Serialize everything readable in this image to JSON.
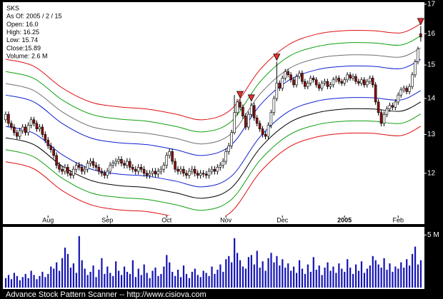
{
  "chart_data": [
    {
      "type": "candlestick",
      "info": [
        "SKS",
        "As Of: 2005 / 2 / 15",
        "Open: 16.0",
        "High: 16.25",
        "Low: 15.74",
        "Close:15.89",
        "Volume: 2.6 M"
      ],
      "log": true,
      "xlim": [
        -1,
        148.3
      ],
      "xticks": [
        {
          "value": 15,
          "label": "Aug"
        },
        {
          "value": 36,
          "label": "Sep"
        },
        {
          "value": 57,
          "label": "Oct"
        },
        {
          "value": 78,
          "label": "Nov"
        },
        {
          "value": 98,
          "label": "Dec"
        },
        {
          "value": 120,
          "label": "2005",
          "bold": true
        },
        {
          "value": 139,
          "label": "Feb"
        }
      ],
      "ylim": [
        11,
        17.05
      ],
      "yticks": [
        12,
        13,
        14,
        15,
        16,
        17
      ],
      "up_color": "#ffffff",
      "down_color": "#8b1010",
      "open": [
        13.4,
        13.55,
        13.3,
        13.2,
        13.05,
        12.95,
        13.1,
        13.2,
        13.05,
        13.25,
        13.4,
        13.3,
        13.15,
        13.2,
        13.0,
        12.85,
        12.7,
        12.6,
        12.45,
        12.2,
        12.1,
        12.05,
        12.15,
        12.0,
        11.95,
        12.1,
        12.2,
        12.15,
        12.05,
        12.1,
        12.25,
        12.3,
        12.2,
        12.15,
        12.05,
        12.0,
        11.95,
        12.05,
        12.2,
        12.25,
        12.3,
        12.35,
        12.25,
        12.2,
        12.3,
        12.15,
        12.1,
        12.05,
        12.15,
        12.1,
        12.0,
        11.95,
        12.0,
        12.05,
        11.98,
        12.05,
        12.1,
        12.2,
        12.45,
        12.55,
        12.3,
        12.1,
        12.05,
        12.1,
        12.0,
        11.95,
        12.05,
        12.1,
        12.0,
        11.95,
        12.0,
        11.98,
        11.95,
        12.05,
        12.1,
        12.05,
        12.15,
        12.2,
        12.3,
        12.55,
        12.7,
        13.05,
        13.6,
        13.9,
        13.75,
        13.5,
        13.2,
        13.55,
        13.8,
        13.45,
        13.3,
        13.15,
        13.0,
        12.95,
        13.25,
        13.6,
        14.0,
        14.45,
        14.3,
        14.6,
        14.8,
        14.7,
        14.55,
        14.4,
        14.65,
        14.75,
        14.5,
        14.35,
        14.45,
        14.6,
        14.55,
        14.4,
        14.3,
        14.45,
        14.5,
        14.35,
        14.4,
        14.55,
        14.6,
        14.5,
        14.45,
        14.55,
        14.7,
        14.6,
        14.65,
        14.5,
        14.45,
        14.55,
        14.4,
        14.5,
        14.6,
        14.4,
        13.9,
        13.6,
        13.3,
        13.55,
        13.7,
        13.8,
        13.75,
        13.9,
        14.1,
        14.25,
        14.3,
        14.2,
        14.35,
        14.7,
        15.1,
        16.0
      ],
      "high": [
        13.63,
        13.63,
        13.38,
        13.28,
        13.13,
        13.18,
        13.28,
        13.28,
        13.33,
        13.48,
        13.48,
        13.38,
        13.28,
        13.28,
        13.08,
        12.93,
        12.78,
        12.68,
        12.53,
        12.28,
        12.18,
        12.23,
        12.23,
        12.08,
        12.18,
        12.28,
        12.28,
        12.23,
        12.18,
        12.33,
        12.38,
        12.38,
        12.28,
        12.23,
        12.13,
        12.08,
        12.13,
        12.28,
        12.33,
        12.38,
        12.43,
        12.43,
        12.33,
        12.38,
        12.38,
        12.23,
        12.18,
        12.23,
        12.23,
        12.18,
        12.08,
        12.08,
        12.13,
        12.13,
        12.13,
        12.18,
        12.28,
        12.53,
        12.63,
        12.63,
        12.38,
        12.18,
        12.18,
        12.18,
        12.08,
        12.13,
        12.18,
        12.18,
        12.08,
        12.08,
        12.08,
        12.06,
        12.13,
        12.18,
        12.18,
        12.23,
        12.28,
        12.38,
        12.63,
        12.78,
        13.13,
        14.1,
        13.98,
        13.98,
        13.83,
        13.58,
        13.63,
        13.88,
        13.88,
        13.53,
        13.38,
        13.23,
        13.08,
        13.33,
        13.68,
        14.08,
        15.1,
        14.53,
        14.68,
        14.88,
        14.88,
        14.78,
        14.63,
        14.73,
        14.83,
        14.83,
        14.58,
        14.53,
        14.68,
        14.68,
        14.63,
        14.48,
        14.53,
        14.58,
        14.58,
        14.48,
        14.63,
        14.68,
        14.68,
        14.58,
        14.63,
        14.78,
        14.78,
        14.73,
        14.73,
        14.58,
        14.63,
        14.63,
        14.58,
        14.68,
        14.68,
        14.48,
        13.98,
        13.68,
        13.63,
        13.78,
        13.88,
        13.88,
        13.98,
        14.18,
        14.33,
        14.38,
        14.38,
        14.43,
        14.78,
        15.18,
        15.58,
        16.25
      ],
      "low": [
        13.32,
        13.22,
        13.12,
        12.97,
        12.87,
        12.87,
        13.02,
        12.97,
        12.97,
        13.17,
        13.22,
        13.07,
        13.07,
        12.92,
        12.77,
        12.62,
        12.52,
        12.37,
        12.12,
        12.02,
        11.97,
        11.97,
        11.92,
        11.87,
        11.87,
        12.02,
        12.07,
        11.97,
        11.97,
        12.02,
        12.17,
        12.12,
        12.07,
        11.97,
        11.92,
        11.87,
        11.87,
        11.97,
        12.12,
        12.17,
        12.22,
        12.17,
        12.12,
        12.12,
        12.07,
        12.02,
        11.97,
        11.97,
        12.02,
        11.92,
        11.87,
        11.87,
        11.92,
        11.9,
        11.9,
        11.97,
        12.02,
        12.12,
        12.37,
        12.22,
        12.02,
        11.97,
        11.97,
        11.92,
        11.87,
        11.87,
        11.97,
        11.92,
        11.87,
        11.87,
        11.9,
        11.87,
        11.87,
        11.97,
        11.97,
        11.97,
        12.07,
        12.12,
        12.22,
        12.47,
        12.62,
        13.0,
        13.52,
        13.67,
        13.42,
        13.12,
        13.12,
        13.47,
        13.37,
        13.22,
        13.07,
        12.92,
        12.87,
        12.87,
        13.17,
        13.52,
        13.92,
        14.22,
        14.22,
        14.52,
        14.62,
        14.47,
        14.32,
        14.32,
        14.57,
        14.42,
        14.27,
        14.27,
        14.37,
        14.47,
        14.32,
        14.22,
        14.22,
        14.37,
        14.27,
        14.27,
        14.32,
        14.47,
        14.42,
        14.37,
        14.37,
        14.47,
        14.52,
        14.52,
        14.42,
        14.37,
        14.37,
        14.32,
        14.32,
        14.42,
        14.32,
        13.82,
        13.52,
        13.22,
        13.22,
        13.47,
        13.62,
        13.67,
        13.67,
        13.82,
        14.02,
        14.17,
        14.12,
        14.12,
        14.27,
        14.62,
        15.02,
        15.74
      ],
      "close": [
        13.55,
        13.3,
        13.2,
        13.05,
        12.95,
        13.1,
        13.2,
        13.05,
        13.25,
        13.4,
        13.3,
        13.15,
        13.2,
        13.0,
        12.85,
        12.7,
        12.6,
        12.45,
        12.2,
        12.1,
        12.05,
        12.15,
        12.0,
        11.95,
        12.1,
        12.2,
        12.15,
        12.05,
        12.1,
        12.25,
        12.3,
        12.2,
        12.15,
        12.05,
        12.0,
        11.95,
        12.05,
        12.2,
        12.25,
        12.3,
        12.35,
        12.25,
        12.2,
        12.3,
        12.15,
        12.1,
        12.05,
        12.15,
        12.1,
        12.0,
        11.95,
        12.0,
        12.05,
        11.98,
        12.05,
        12.1,
        12.2,
        12.45,
        12.55,
        12.3,
        12.1,
        12.05,
        12.1,
        12.0,
        11.95,
        12.05,
        12.1,
        12.0,
        11.95,
        12.0,
        11.98,
        11.95,
        12.05,
        12.1,
        12.05,
        12.15,
        12.2,
        12.3,
        12.55,
        12.7,
        13.05,
        13.6,
        13.9,
        13.75,
        13.5,
        13.2,
        13.55,
        13.8,
        13.45,
        13.3,
        13.15,
        13.0,
        12.95,
        13.25,
        13.6,
        14.0,
        14.45,
        14.3,
        14.6,
        14.8,
        14.7,
        14.55,
        14.4,
        14.65,
        14.75,
        14.5,
        14.35,
        14.45,
        14.6,
        14.55,
        14.4,
        14.3,
        14.45,
        14.5,
        14.35,
        14.4,
        14.55,
        14.6,
        14.5,
        14.45,
        14.55,
        14.7,
        14.6,
        14.65,
        14.5,
        14.45,
        14.55,
        14.4,
        14.5,
        14.6,
        14.4,
        13.9,
        13.6,
        13.3,
        13.55,
        13.7,
        13.8,
        13.75,
        13.9,
        14.1,
        14.25,
        14.3,
        14.2,
        14.35,
        14.7,
        15.1,
        15.5,
        15.89
      ],
      "bands": {
        "x": [
          0,
          10,
          20,
          30,
          40,
          50,
          60,
          70,
          80,
          90,
          100,
          110,
          120,
          130,
          140,
          147
        ],
        "series": [
          {
            "color": "#e01010",
            "values": [
              15.18,
              14.96,
              14.31,
              13.9,
              13.76,
              13.7,
              13.56,
              13.4,
              13.7,
              14.85,
              15.63,
              15.98,
              16.1,
              16.1,
              16.03,
              16.33
            ]
          },
          {
            "color": "#10a010",
            "values": [
              14.8,
              14.59,
              13.96,
              13.56,
              13.42,
              13.36,
              13.22,
              13.07,
              13.36,
              14.48,
              15.25,
              15.58,
              15.7,
              15.7,
              15.63,
              15.93
            ]
          },
          {
            "color": "#707070",
            "values": [
              14.44,
              14.23,
              13.62,
              13.22,
              13.09,
              13.03,
              12.9,
              12.75,
              13.03,
              14.12,
              14.87,
              15.2,
              15.31,
              15.31,
              15.25,
              15.54
            ]
          },
          {
            "color": "#1020d0",
            "values": [
              14.1,
              13.9,
              13.3,
              12.91,
              12.78,
              12.73,
              12.6,
              12.45,
              12.73,
              13.8,
              14.52,
              14.85,
              14.96,
              14.96,
              14.89,
              15.18
            ]
          },
          {
            "color": "#1020d0",
            "values": [
              13.22,
              13.03,
              12.47,
              12.11,
              11.98,
              11.93,
              11.81,
              11.67,
              11.93,
              12.93,
              13.62,
              13.92,
              14.02,
              14.02,
              13.96,
              14.23
            ]
          },
          {
            "color": "#000000",
            "values": [
              12.91,
              12.73,
              12.18,
              11.83,
              11.7,
              11.65,
              11.53,
              11.4,
              11.65,
              12.63,
              13.3,
              13.59,
              13.7,
              13.7,
              13.64,
              13.9
            ]
          },
          {
            "color": "#10a010",
            "values": [
              12.6,
              12.41,
              11.88,
              11.53,
              11.42,
              11.37,
              11.25,
              11.12,
              11.37,
              12.32,
              12.97,
              13.26,
              13.36,
              13.36,
              13.3,
              13.56
            ]
          },
          {
            "color": "#e01010",
            "values": [
              12.29,
              12.11,
              11.58,
              11.25,
              11.13,
              11.09,
              10.97,
              10.84,
              11.09,
              12.02,
              12.65,
              12.93,
              13.03,
              13.03,
              12.97,
              13.22
            ]
          }
        ]
      },
      "markers": {
        "color": "#e03030",
        "indices": [
          83,
          87,
          96,
          147
        ]
      }
    },
    {
      "type": "bar",
      "xlim": [
        -1,
        148.3
      ],
      "ylim": [
        0,
        5.5
      ],
      "y2ticks": [
        {
          "value": 5,
          "label": "5 M"
        }
      ],
      "color": "#1414b4",
      "values": [
        0.9,
        1.2,
        0.8,
        1.4,
        1.1,
        0.7,
        1.0,
        1.3,
        0.9,
        1.6,
        1.2,
        0.8,
        1.1,
        1.5,
        1.0,
        1.3,
        2.0,
        1.8,
        2.4,
        1.6,
        2.8,
        3.8,
        3.2,
        1.9,
        2.3,
        1.4,
        4.9,
        2.6,
        1.8,
        1.2,
        1.5,
        2.1,
        1.0,
        1.7,
        2.8,
        1.3,
        2.0,
        1.4,
        1.1,
        2.5,
        1.6,
        1.2,
        2.0,
        1.5,
        1.3,
        2.6,
        1.0,
        1.8,
        1.2,
        2.2,
        1.4,
        0.9,
        1.6,
        1.9,
        1.1,
        1.3,
        2.0,
        3.1,
        2.4,
        1.5,
        1.1,
        1.7,
        1.0,
        2.1,
        1.3,
        0.9,
        1.5,
        1.8,
        1.2,
        1.0,
        1.6,
        1.4,
        1.1,
        2.0,
        1.3,
        1.7,
        2.2,
        1.5,
        2.7,
        3.0,
        2.4,
        4.7,
        3.3,
        2.6,
        2.0,
        1.8,
        2.9,
        3.1,
        2.2,
        3.5,
        1.9,
        2.5,
        1.6,
        2.8,
        3.3,
        2.4,
        3.0,
        2.1,
        2.7,
        1.9,
        2.3,
        1.6,
        2.0,
        1.4,
        2.6,
        1.8,
        1.3,
        2.2,
        1.5,
        2.9,
        1.7,
        2.1,
        1.2,
        1.9,
        2.4,
        1.6,
        2.0,
        1.4,
        2.3,
        1.8,
        1.5,
        2.7,
        1.9,
        1.3,
        2.2,
        1.6,
        2.5,
        1.4,
        1.8,
        2.1,
        3.0,
        2.6,
        2.2,
        1.9,
        2.8,
        1.7,
        2.3,
        1.5,
        2.0,
        1.8,
        2.4,
        1.9,
        2.7,
        2.1,
        3.2,
        3.9,
        2.2,
        2.6
      ]
    }
  ],
  "footer": "Advance Stock Pattern Scanner -- http://www.cisiova.com"
}
